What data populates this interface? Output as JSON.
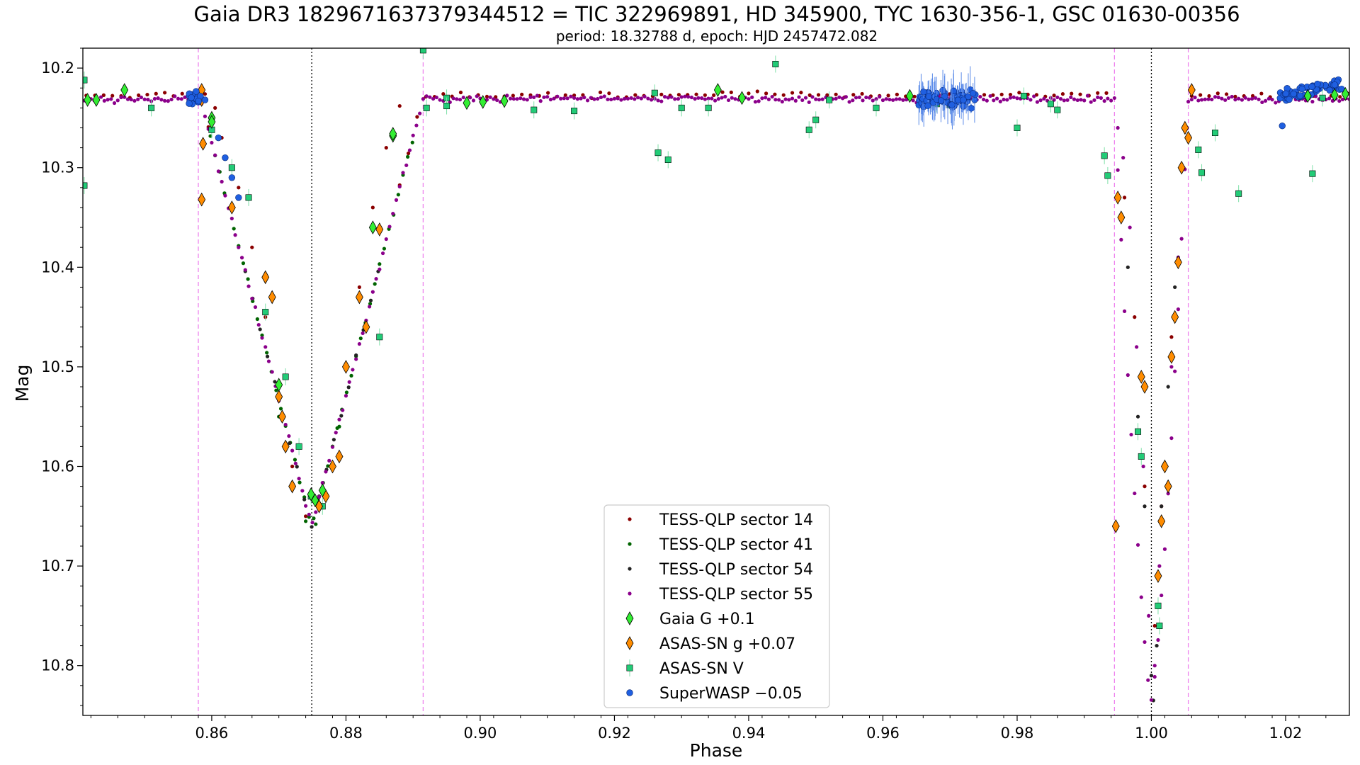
{
  "chart_data": {
    "type": "scatter",
    "title": "Gaia DR3 1829671637379344512 = TIC 322969891, HD 345900, TYC 1630-356-1, GSC 01630-00356",
    "subtitle": "period: 18.32788 d, epoch: HJD 2457472.082",
    "xlabel": "Phase",
    "ylabel": "Mag",
    "xlim": [
      0.8408,
      1.0295
    ],
    "ylim": [
      10.85,
      10.18
    ],
    "y_inverted": true,
    "grid": false,
    "legend_position": "lower-center",
    "x_ticks": [
      0.86,
      0.88,
      0.9,
      0.92,
      0.94,
      0.96,
      0.98,
      1.0,
      1.02
    ],
    "x_tick_labels": [
      "0.86",
      "0.88",
      "0.90",
      "0.92",
      "0.94",
      "0.96",
      "0.98",
      "1.00",
      "1.02"
    ],
    "y_ticks": [
      10.2,
      10.3,
      10.4,
      10.5,
      10.6,
      10.7,
      10.8
    ],
    "y_tick_labels": [
      "10.2",
      "10.3",
      "10.4",
      "10.5",
      "10.6",
      "10.7",
      "10.8"
    ],
    "vertical_lines": [
      {
        "x": 0.858,
        "color": "#ee82ee",
        "style": "dashed"
      },
      {
        "x": 0.8749,
        "color": "#000000",
        "style": "dotted"
      },
      {
        "x": 0.8915,
        "color": "#ee82ee",
        "style": "dashed"
      },
      {
        "x": 0.9945,
        "color": "#ee82ee",
        "style": "dashed"
      },
      {
        "x": 1.0,
        "color": "#000000",
        "style": "dotted"
      },
      {
        "x": 1.0055,
        "color": "#ee82ee",
        "style": "dashed"
      }
    ],
    "model": {
      "baseline": 10.231,
      "primary_eclipse": {
        "center": 1.0,
        "half_width": 0.0055,
        "depth_mag": 10.835
      },
      "secondary_eclipse": {
        "center": 0.8749,
        "half_width": 0.0166,
        "depth_mag": 10.66
      }
    },
    "series": [
      {
        "name": "TESS-QLP sector 14",
        "marker": "dot",
        "color": "#8b0000",
        "x_ranges": [
          [
            0.84,
            0.86
          ],
          [
            0.888,
            0.994
          ],
          [
            1.006,
            1.03
          ]
        ],
        "step": 0.0013,
        "points": [
          [
            0.859,
            10.226
          ],
          [
            0.8605,
            10.24
          ],
          [
            0.8615,
            10.27
          ],
          [
            0.864,
            10.32
          ],
          [
            0.866,
            10.38
          ],
          [
            0.868,
            10.45
          ],
          [
            0.87,
            10.53
          ],
          [
            0.872,
            10.6
          ],
          [
            0.874,
            10.65
          ],
          [
            0.876,
            10.64
          ],
          [
            0.878,
            10.58
          ],
          [
            0.88,
            10.5
          ],
          [
            0.882,
            10.42
          ],
          [
            0.884,
            10.34
          ],
          [
            0.886,
            10.28
          ],
          [
            0.888,
            10.238
          ],
          [
            0.996,
            10.33
          ],
          [
            0.9975,
            10.45
          ],
          [
            0.999,
            10.62
          ],
          [
            1.0005,
            10.76
          ],
          [
            1.0015,
            10.64
          ],
          [
            1.003,
            10.47
          ]
        ]
      },
      {
        "name": "TESS-QLP sector 41",
        "marker": "dot",
        "color": "#006400",
        "x_ranges": [
          [
            0.8598,
            0.89
          ]
        ],
        "step": 0.0007,
        "points": [
          [
            0.87,
            10.55
          ],
          [
            0.872,
            10.62
          ],
          [
            0.874,
            10.655
          ],
          [
            0.8755,
            10.658
          ],
          [
            0.877,
            10.63
          ],
          [
            0.879,
            10.56
          ]
        ]
      },
      {
        "name": "TESS-QLP sector 54",
        "marker": "dot",
        "color": "#222222",
        "x_ranges": [
          [
            0.865,
            0.885
          ]
        ],
        "step": 0.0011,
        "points": [
          [
            0.9965,
            10.4
          ],
          [
            0.998,
            10.55
          ],
          [
            0.999,
            10.64
          ],
          [
            1.0,
            10.81
          ],
          [
            1.0003,
            10.835
          ],
          [
            1.0008,
            10.78
          ],
          [
            1.0015,
            10.64
          ],
          [
            1.0025,
            10.52
          ],
          [
            1.0035,
            10.42
          ]
        ]
      },
      {
        "name": "TESS-QLP sector 55",
        "marker": "dot",
        "color": "#8b008b",
        "x_ranges": [
          [
            0.84,
            1.03
          ]
        ],
        "step": 0.0005,
        "points": [
          [
            0.995,
            10.26
          ],
          [
            0.9958,
            10.29
          ],
          [
            0.9968,
            10.36
          ],
          [
            0.9978,
            10.48
          ],
          [
            0.9988,
            10.6
          ],
          [
            0.9996,
            10.75
          ],
          [
            1.0005,
            10.8
          ],
          [
            1.0012,
            10.7
          ],
          [
            1.002,
            10.6
          ],
          [
            1.003,
            10.5
          ],
          [
            1.004,
            10.39
          ],
          [
            1.0048,
            10.3
          ],
          [
            1.0053,
            10.26
          ]
        ]
      },
      {
        "name": "Gaia G +0.1",
        "marker": "diamond",
        "color": "#33ee33",
        "points": [
          [
            0.8415,
            10.232
          ],
          [
            0.8428,
            10.232
          ],
          [
            0.847,
            10.222
          ],
          [
            0.86,
            10.25
          ],
          [
            0.86,
            10.254
          ],
          [
            0.87,
            10.518
          ],
          [
            0.8748,
            10.628
          ],
          [
            0.8754,
            10.634
          ],
          [
            0.8765,
            10.624
          ],
          [
            0.884,
            10.36
          ],
          [
            0.887,
            10.268
          ],
          [
            0.887,
            10.266
          ],
          [
            0.898,
            10.235
          ],
          [
            0.9004,
            10.234
          ],
          [
            0.9036,
            10.233
          ],
          [
            0.9354,
            10.222
          ],
          [
            0.939,
            10.23
          ],
          [
            0.964,
            10.228
          ],
          [
            1.0233,
            10.228
          ],
          [
            1.0273,
            10.227
          ],
          [
            1.0289,
            10.226
          ]
        ]
      },
      {
        "name": "ASAS-SN g +0.07",
        "marker": "diamond",
        "color": "#ff8c00",
        "points": [
          [
            0.8585,
            10.222
          ],
          [
            0.8585,
            10.232
          ],
          [
            0.8587,
            10.276
          ],
          [
            0.8585,
            10.332
          ],
          [
            0.863,
            10.34
          ],
          [
            0.868,
            10.41
          ],
          [
            0.869,
            10.43
          ],
          [
            0.87,
            10.53
          ],
          [
            0.8705,
            10.55
          ],
          [
            0.871,
            10.58
          ],
          [
            0.872,
            10.62
          ],
          [
            0.876,
            10.64
          ],
          [
            0.877,
            10.63
          ],
          [
            0.878,
            10.6
          ],
          [
            0.879,
            10.59
          ],
          [
            0.88,
            10.5
          ],
          [
            0.882,
            10.43
          ],
          [
            0.883,
            10.46
          ],
          [
            0.885,
            10.362
          ],
          [
            0.9947,
            10.66
          ],
          [
            0.995,
            10.33
          ],
          [
            0.9955,
            10.35
          ],
          [
            0.9985,
            10.51
          ],
          [
            0.999,
            10.52
          ],
          [
            1.001,
            10.71
          ],
          [
            1.0015,
            10.655
          ],
          [
            1.002,
            10.6
          ],
          [
            1.0025,
            10.62
          ],
          [
            1.003,
            10.49
          ],
          [
            1.0035,
            10.45
          ],
          [
            1.004,
            10.395
          ],
          [
            1.0045,
            10.3
          ],
          [
            1.005,
            10.26
          ],
          [
            1.0055,
            10.27
          ],
          [
            1.006,
            10.222
          ]
        ]
      },
      {
        "name": "ASAS-SN V",
        "marker": "square",
        "color": "#22cc77",
        "points": [
          [
            0.841,
            10.212
          ],
          [
            0.841,
            10.318
          ],
          [
            0.851,
            10.24
          ],
          [
            0.86,
            10.262
          ],
          [
            0.863,
            10.3
          ],
          [
            0.8655,
            10.33
          ],
          [
            0.868,
            10.445
          ],
          [
            0.871,
            10.51
          ],
          [
            0.873,
            10.58
          ],
          [
            0.8748,
            10.63
          ],
          [
            0.8765,
            10.64
          ],
          [
            0.885,
            10.47
          ],
          [
            0.8915,
            10.182
          ],
          [
            0.892,
            10.24
          ],
          [
            0.895,
            10.23
          ],
          [
            0.895,
            10.238
          ],
          [
            0.908,
            10.242
          ],
          [
            0.914,
            10.243
          ],
          [
            0.926,
            10.225
          ],
          [
            0.9265,
            10.285
          ],
          [
            0.928,
            10.292
          ],
          [
            0.93,
            10.24
          ],
          [
            0.934,
            10.24
          ],
          [
            0.944,
            10.196
          ],
          [
            0.949,
            10.262
          ],
          [
            0.95,
            10.252
          ],
          [
            0.952,
            10.232
          ],
          [
            0.959,
            10.24
          ],
          [
            0.968,
            10.236
          ],
          [
            0.97,
            10.237
          ],
          [
            0.98,
            10.26
          ],
          [
            0.981,
            10.228
          ],
          [
            0.985,
            10.236
          ],
          [
            0.986,
            10.242
          ],
          [
            0.993,
            10.288
          ],
          [
            0.9935,
            10.308
          ],
          [
            0.998,
            10.565
          ],
          [
            0.9985,
            10.59
          ],
          [
            1.001,
            10.74
          ],
          [
            1.0012,
            10.76
          ],
          [
            1.007,
            10.282
          ],
          [
            1.0075,
            10.305
          ],
          [
            1.0095,
            10.265
          ],
          [
            1.013,
            10.326
          ],
          [
            1.024,
            10.306
          ],
          [
            1.0255,
            10.23
          ]
        ]
      },
      {
        "name": "SuperWASP −0.05",
        "marker": "circle",
        "color": "#1f5fe0",
        "x_ranges": [
          [
            0.8565,
            0.8585
          ],
          [
            0.965,
            0.974
          ],
          [
            1.019,
            1.0285
          ]
        ],
        "points": [
          [
            0.859,
            10.232
          ],
          [
            0.86,
            10.25
          ],
          [
            0.861,
            10.27
          ],
          [
            0.862,
            10.29
          ],
          [
            0.863,
            10.31
          ],
          [
            0.864,
            10.33
          ],
          [
            1.0195,
            10.258
          ]
        ]
      }
    ]
  }
}
